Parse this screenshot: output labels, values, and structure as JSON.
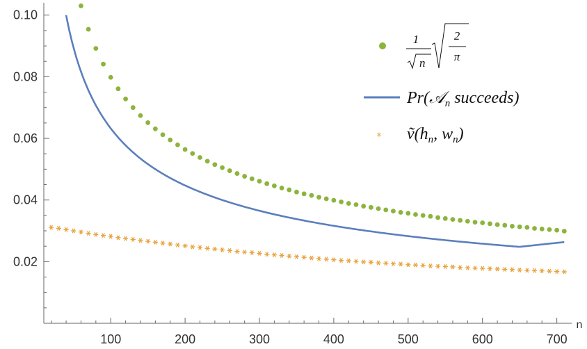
{
  "chart_data": {
    "type": "scatter",
    "title": "",
    "xlabel": "n",
    "ylabel": "",
    "xlim": [
      10,
      720
    ],
    "ylim": [
      0.0,
      0.104
    ],
    "x_ticks": [
      100,
      200,
      300,
      400,
      500,
      600,
      700
    ],
    "x_tick_labels": [
      "100",
      "200",
      "300",
      "400",
      "500",
      "600",
      "700"
    ],
    "y_ticks": [
      0.02,
      0.04,
      0.06,
      0.08,
      0.1
    ],
    "y_tick_labels": [
      "0.02",
      "0.04",
      "0.06",
      "0.08",
      "0.10"
    ],
    "grid": false,
    "legend_position": "top-right",
    "colors": {
      "dots": "#8cb43c",
      "line": "#5b7fbd",
      "stars": "#e8a23c",
      "axis": "#666666"
    },
    "series": [
      {
        "name": "1/√n · √(2/π)",
        "legend": {
          "num": "1",
          "den_sqrt": "n",
          "rad_num": "2",
          "rad_den": "π"
        },
        "style": "dots",
        "x": [
          60,
          70,
          80,
          90,
          100,
          110,
          120,
          130,
          140,
          150,
          160,
          170,
          180,
          190,
          200,
          210,
          220,
          230,
          240,
          250,
          260,
          270,
          280,
          290,
          300,
          310,
          320,
          330,
          340,
          350,
          360,
          370,
          380,
          390,
          400,
          410,
          420,
          430,
          440,
          450,
          460,
          470,
          480,
          490,
          500,
          510,
          520,
          530,
          540,
          550,
          560,
          570,
          580,
          590,
          600,
          610,
          620,
          630,
          640,
          650,
          660,
          670,
          680,
          690,
          700,
          710
        ],
        "y": [
          0.103,
          0.0954,
          0.0892,
          0.0841,
          0.0798,
          0.0761,
          0.0728,
          0.07,
          0.0674,
          0.0651,
          0.0631,
          0.0612,
          0.0595,
          0.0579,
          0.0564,
          0.0551,
          0.0538,
          0.0526,
          0.0515,
          0.0505,
          0.0495,
          0.0486,
          0.0477,
          0.0469,
          0.0461,
          0.0453,
          0.0446,
          0.0439,
          0.0433,
          0.0426,
          0.042,
          0.0415,
          0.0409,
          0.0404,
          0.0399,
          0.0394,
          0.0389,
          0.0385,
          0.038,
          0.0376,
          0.0372,
          0.0368,
          0.0364,
          0.036,
          0.0357,
          0.0353,
          0.035,
          0.0347,
          0.0343,
          0.034,
          0.0337,
          0.0334,
          0.0331,
          0.0328,
          0.0326,
          0.0323,
          0.032,
          0.0318,
          0.0315,
          0.0313,
          0.0311,
          0.0308,
          0.0306,
          0.0304,
          0.0302,
          0.0299
        ]
      },
      {
        "name": "Pr(A_n succeeds)",
        "legend": {
          "prefix": "Pr(",
          "script": "𝒜",
          "sub": "n",
          "suffix": " succeeds)"
        },
        "style": "line",
        "x": [
          40,
          45,
          50,
          55,
          60,
          70,
          80,
          90,
          100,
          120,
          140,
          160,
          180,
          200,
          220,
          250,
          280,
          300,
          350,
          400,
          450,
          500,
          550,
          600,
          650,
          700,
          710
        ],
        "y": [
          0.1,
          0.0943,
          0.0894,
          0.0853,
          0.0816,
          0.0756,
          0.0707,
          0.0666,
          0.0632,
          0.0577,
          0.0534,
          0.05,
          0.0471,
          0.0447,
          0.0426,
          0.04,
          0.0378,
          0.0365,
          0.0338,
          0.0316,
          0.0298,
          0.0283,
          0.0269,
          0.0258,
          0.0248,
          0.0239,
          0.0265
        ]
      },
      {
        "name": "ṽ(h_n, w_n)",
        "legend": {
          "v": "ṽ",
          "open": "(",
          "h": "h",
          "h_sub": "n",
          "comma": ", ",
          "w": "w",
          "w_sub": "n",
          "close": ")"
        },
        "style": "stars",
        "x": [
          20,
          30,
          40,
          50,
          60,
          70,
          80,
          90,
          100,
          110,
          120,
          130,
          140,
          150,
          160,
          170,
          180,
          190,
          200,
          210,
          220,
          230,
          240,
          250,
          260,
          270,
          280,
          290,
          300,
          310,
          320,
          330,
          340,
          350,
          360,
          370,
          380,
          390,
          400,
          410,
          420,
          430,
          440,
          450,
          460,
          470,
          480,
          490,
          500,
          510,
          520,
          530,
          540,
          550,
          560,
          570,
          580,
          590,
          600,
          610,
          620,
          630,
          640,
          650,
          660,
          670,
          680,
          690,
          700,
          710
        ],
        "y": [
          0.0311,
          0.0308,
          0.0304,
          0.03,
          0.0296,
          0.0292,
          0.0288,
          0.0285,
          0.0282,
          0.0278,
          0.0275,
          0.0272,
          0.0269,
          0.0266,
          0.0263,
          0.026,
          0.0257,
          0.0254,
          0.0251,
          0.0248,
          0.0246,
          0.0243,
          0.0241,
          0.0238,
          0.0236,
          0.0233,
          0.0231,
          0.0229,
          0.0227,
          0.0224,
          0.0222,
          0.022,
          0.0218,
          0.0216,
          0.0214,
          0.0212,
          0.021,
          0.0208,
          0.0206,
          0.0204,
          0.0203,
          0.0201,
          0.0199,
          0.0198,
          0.0196,
          0.0195,
          0.0193,
          0.0192,
          0.019,
          0.0189,
          0.0188,
          0.0186,
          0.0185,
          0.0184,
          0.0183,
          0.0181,
          0.018,
          0.0179,
          0.0178,
          0.0177,
          0.0176,
          0.0175,
          0.0174,
          0.0173,
          0.0172,
          0.0171,
          0.017,
          0.0169,
          0.0168,
          0.0167
        ]
      }
    ]
  }
}
